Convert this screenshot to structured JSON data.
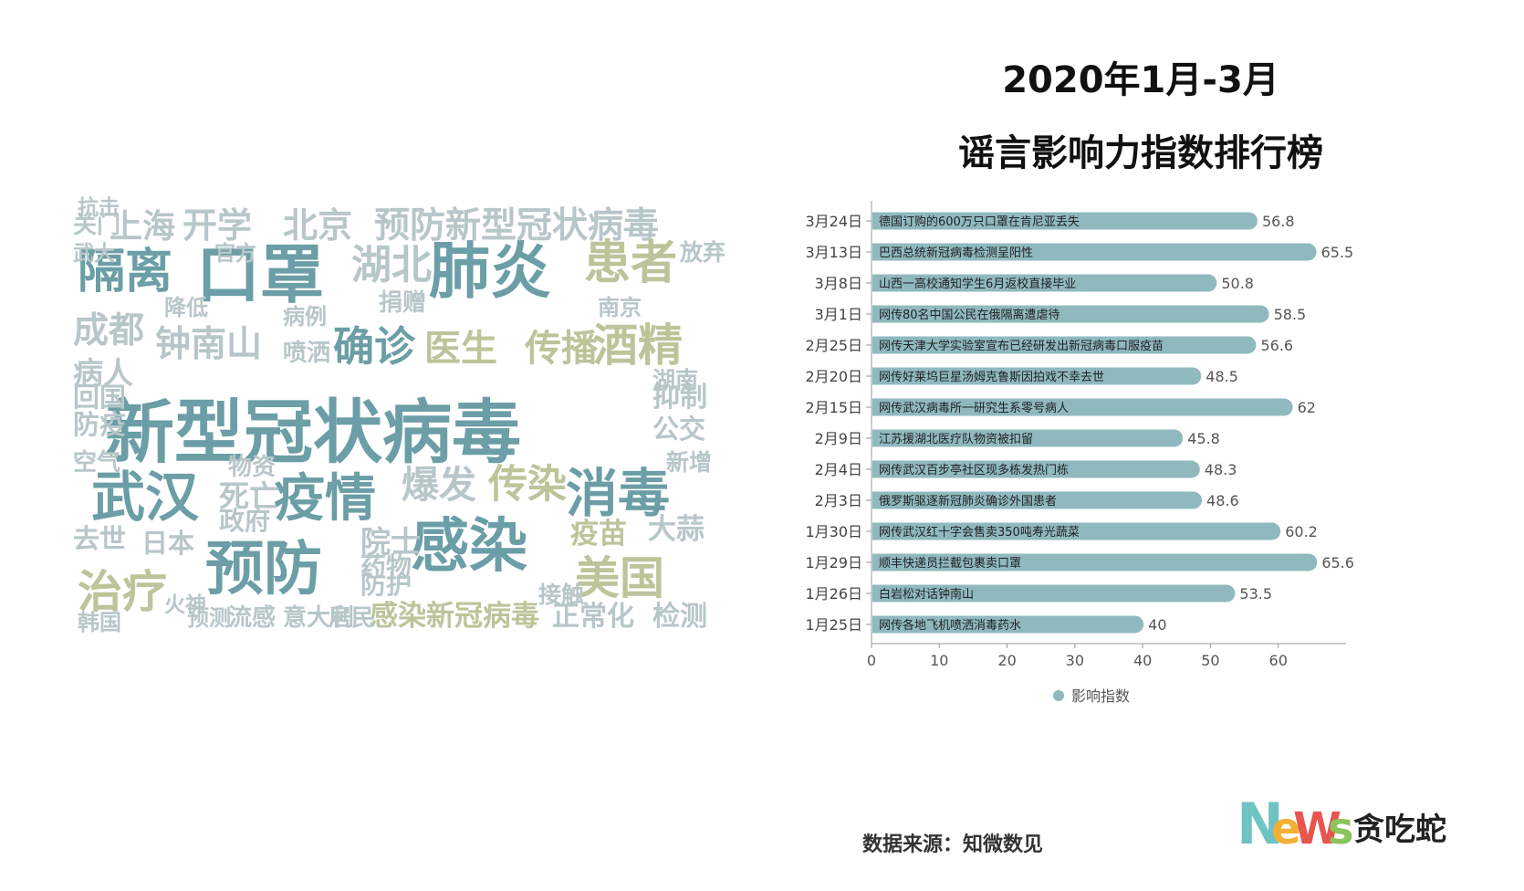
{
  "title": {
    "line1": "2020年1月-3月",
    "line2": "谣言影响力指数排行榜"
  },
  "source": "数据来源：知微数见",
  "logo": {
    "letters": [
      "N",
      "e",
      "W",
      "s"
    ],
    "text": "贪吃蛇",
    "colors": [
      "#6fc3c3",
      "#f2b134",
      "#e8554e",
      "#8ac45c"
    ]
  },
  "colors": {
    "bar": "#8fb9bf",
    "axis": "#999999",
    "cloud_teal": "#6b9ea6",
    "cloud_olive": "#bcc49a",
    "cloud_grey": "#b7c6c9"
  },
  "wordcloud": {
    "words": [
      {
        "text": "新型冠状病毒",
        "weight": 1.0,
        "tone": "teal"
      },
      {
        "text": "口罩",
        "weight": 0.9,
        "tone": "teal"
      },
      {
        "text": "肺炎",
        "weight": 0.85,
        "tone": "teal"
      },
      {
        "text": "感染",
        "weight": 0.8,
        "tone": "teal"
      },
      {
        "text": "预防",
        "weight": 0.8,
        "tone": "teal"
      },
      {
        "text": "武汉",
        "weight": 0.72,
        "tone": "teal"
      },
      {
        "text": "消毒",
        "weight": 0.7,
        "tone": "teal"
      },
      {
        "text": "疫情",
        "weight": 0.68,
        "tone": "teal"
      },
      {
        "text": "隔离",
        "weight": 0.62,
        "tone": "teal"
      },
      {
        "text": "患者",
        "weight": 0.6,
        "tone": "olive"
      },
      {
        "text": "酒精",
        "weight": 0.56,
        "tone": "olive"
      },
      {
        "text": "美国",
        "weight": 0.56,
        "tone": "olive"
      },
      {
        "text": "治疗",
        "weight": 0.56,
        "tone": "olive"
      },
      {
        "text": "确诊",
        "weight": 0.5,
        "tone": "teal"
      },
      {
        "text": "湖北",
        "weight": 0.48,
        "tone": "grey"
      },
      {
        "text": "传染",
        "weight": 0.46,
        "tone": "olive"
      },
      {
        "text": "爆发",
        "weight": 0.44,
        "tone": "grey"
      },
      {
        "text": "传播",
        "weight": 0.42,
        "tone": "olive"
      },
      {
        "text": "医生",
        "weight": 0.42,
        "tone": "olive"
      },
      {
        "text": "成都",
        "weight": 0.4,
        "tone": "grey"
      },
      {
        "text": "钟南山",
        "weight": 0.4,
        "tone": "grey"
      },
      {
        "text": "预防新型冠状病毒",
        "weight": 0.4,
        "tone": "grey"
      },
      {
        "text": "北京",
        "weight": 0.38,
        "tone": "grey"
      },
      {
        "text": "开学",
        "weight": 0.38,
        "tone": "grey"
      },
      {
        "text": "上海",
        "weight": 0.36,
        "tone": "grey"
      },
      {
        "text": "病人",
        "weight": 0.3,
        "tone": "grey"
      },
      {
        "text": "死亡",
        "weight": 0.3,
        "tone": "grey"
      },
      {
        "text": "院士",
        "weight": 0.3,
        "tone": "grey"
      },
      {
        "text": "疫苗",
        "weight": 0.28,
        "tone": "olive"
      },
      {
        "text": "大蒜",
        "weight": 0.28,
        "tone": "grey"
      },
      {
        "text": "感染新冠病毒",
        "weight": 0.28,
        "tone": "olive"
      },
      {
        "text": "正常化",
        "weight": 0.26,
        "tone": "grey"
      },
      {
        "text": "检测",
        "weight": 0.26,
        "tone": "grey"
      },
      {
        "text": "抑制",
        "weight": 0.26,
        "tone": "grey"
      },
      {
        "text": "公交",
        "weight": 0.24,
        "tone": "grey"
      },
      {
        "text": "防疫",
        "weight": 0.24,
        "tone": "grey"
      },
      {
        "text": "回国",
        "weight": 0.24,
        "tone": "grey"
      },
      {
        "text": "去世",
        "weight": 0.24,
        "tone": "grey"
      },
      {
        "text": "日本",
        "weight": 0.24,
        "tone": "grey"
      },
      {
        "text": "政府",
        "weight": 0.22,
        "tone": "grey"
      },
      {
        "text": "药物",
        "weight": 0.22,
        "tone": "grey"
      },
      {
        "text": "防护",
        "weight": 0.22,
        "tone": "grey"
      },
      {
        "text": "物资",
        "weight": 0.2,
        "tone": "grey"
      },
      {
        "text": "喷洒",
        "weight": 0.2,
        "tone": "grey"
      },
      {
        "text": "捐赠",
        "weight": 0.2,
        "tone": "grey"
      },
      {
        "text": "关门",
        "weight": 0.2,
        "tone": "grey"
      },
      {
        "text": "空气",
        "weight": 0.2,
        "tone": "grey"
      },
      {
        "text": "流感",
        "weight": 0.2,
        "tone": "grey"
      },
      {
        "text": "意大利",
        "weight": 0.2,
        "tone": "grey"
      },
      {
        "text": "居民",
        "weight": 0.18,
        "tone": "grey"
      },
      {
        "text": "接触",
        "weight": 0.18,
        "tone": "grey"
      },
      {
        "text": "新增",
        "weight": 0.18,
        "tone": "grey"
      },
      {
        "text": "湖南",
        "weight": 0.18,
        "tone": "grey"
      },
      {
        "text": "放弃",
        "weight": 0.18,
        "tone": "grey"
      },
      {
        "text": "降低",
        "weight": 0.16,
        "tone": "grey"
      },
      {
        "text": "病例",
        "weight": 0.16,
        "tone": "grey"
      },
      {
        "text": "南京",
        "weight": 0.16,
        "tone": "grey"
      },
      {
        "text": "预测",
        "weight": 0.16,
        "tone": "grey"
      },
      {
        "text": "韩国",
        "weight": 0.16,
        "tone": "grey"
      },
      {
        "text": "火神",
        "weight": 0.14,
        "tone": "grey"
      },
      {
        "text": "官方",
        "weight": 0.14,
        "tone": "grey"
      },
      {
        "text": "武大",
        "weight": 0.14,
        "tone": "grey"
      },
      {
        "text": "抗击",
        "weight": 0.14,
        "tone": "grey"
      }
    ]
  },
  "chart_data": {
    "type": "bar",
    "orientation": "horizontal",
    "categories": [
      "3月24日",
      "3月13日",
      "3月8日",
      "3月1日",
      "2月25日",
      "2月20日",
      "2月15日",
      "2月9日",
      "2月4日",
      "2月3日",
      "1月30日",
      "1月29日",
      "1月26日",
      "1月25日"
    ],
    "labels": [
      "德国订购的600万只口罩在肯尼亚丢失",
      "巴西总统新冠病毒检测呈阳性",
      "山西一高校通知学生6月返校直接毕业",
      "网传80名中国公民在俄隔离遭虐待",
      "网传天津大学实验室宣布已经研发出新冠病毒口服疫苗",
      "网传好莱坞巨星汤姆克鲁斯因拍戏不幸去世",
      "网传武汉病毒所一研究生系零号病人",
      "江苏援湖北医疗队物资被扣留",
      "网传武汉百步亭社区现多栋发热门栋",
      "俄罗斯驱逐新冠肺炎确诊外国患者",
      "网传武汉红十字会售卖350吨寿光蔬菜",
      "顺丰快递员拦截包裹卖口罩",
      "白岩松对话钟南山",
      "网传各地飞机喷洒消毒药水"
    ],
    "series": [
      {
        "name": "影响指数",
        "values": [
          56.8,
          65.5,
          50.8,
          58.5,
          56.6,
          48.5,
          62,
          45.8,
          48.3,
          48.6,
          60.2,
          65.6,
          53.5,
          40
        ]
      }
    ],
    "xlim": [
      0,
      70
    ],
    "xticks": [
      0,
      10,
      20,
      30,
      40,
      50,
      60
    ],
    "legend": "bottom"
  }
}
